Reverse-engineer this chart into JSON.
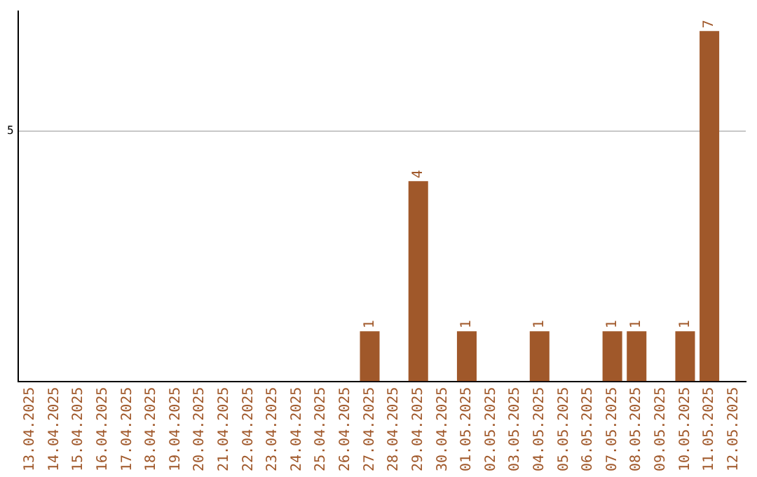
{
  "chart_data": {
    "type": "bar",
    "categories": [
      "13.04.2025",
      "14.04.2025",
      "15.04.2025",
      "16.04.2025",
      "17.04.2025",
      "18.04.2025",
      "19.04.2025",
      "20.04.2025",
      "21.04.2025",
      "22.04.2025",
      "23.04.2025",
      "24.04.2025",
      "25.04.2025",
      "26.04.2025",
      "27.04.2025",
      "28.04.2025",
      "29.04.2025",
      "30.04.2025",
      "01.05.2025",
      "02.05.2025",
      "03.05.2025",
      "04.05.2025",
      "05.05.2025",
      "06.05.2025",
      "07.05.2025",
      "08.05.2025",
      "09.05.2025",
      "10.05.2025",
      "11.05.2025",
      "12.05.2025"
    ],
    "values": [
      null,
      null,
      null,
      null,
      null,
      null,
      null,
      null,
      null,
      null,
      null,
      null,
      null,
      null,
      1,
      null,
      4,
      null,
      1,
      null,
      null,
      1,
      null,
      null,
      1,
      1,
      null,
      1,
      7,
      null
    ],
    "data_labels": true,
    "color": "#a0582a",
    "ylim": [
      0,
      7.4
    ],
    "yticks": [
      5
    ],
    "grid": "y",
    "legend": false
  }
}
